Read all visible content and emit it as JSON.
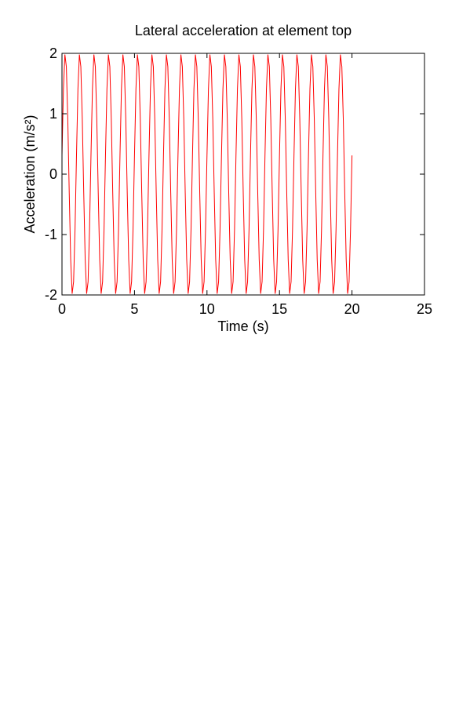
{
  "chart_data": {
    "type": "line",
    "title": "Lateral acceleration at element top",
    "xlabel": "Time (s)",
    "ylabel": "Acceleration (m/s²)",
    "xlim": [
      0,
      25
    ],
    "xticks": [
      0,
      5,
      10,
      15,
      20,
      25
    ],
    "ylim": [
      -2,
      2
    ],
    "yticks": [
      -2,
      -1,
      0,
      1,
      2
    ],
    "grid": false,
    "x": [
      0,
      0.1,
      0.2,
      0.3,
      0.4,
      0.5,
      0.6,
      0.7,
      0.8,
      0.9,
      1,
      1.1,
      1.2,
      1.3,
      1.4,
      1.5,
      1.6,
      1.7,
      1.8,
      1.9,
      2,
      2.1,
      2.2,
      2.3,
      2.4,
      2.5,
      2.6,
      2.7,
      2.8,
      2.9,
      3,
      3.1,
      3.2,
      3.3,
      3.4,
      3.5,
      3.6,
      3.7,
      3.8,
      3.9,
      4,
      4.1,
      4.2,
      4.3,
      4.4,
      4.5,
      4.6,
      4.7,
      4.8,
      4.9,
      5,
      5.1,
      5.2,
      5.3,
      5.4,
      5.5,
      5.6,
      5.7,
      5.8,
      5.9,
      6,
      6.1,
      6.2,
      6.3,
      6.4,
      6.5,
      6.6,
      6.7,
      6.8,
      6.9,
      7,
      7.1,
      7.2,
      7.3,
      7.4,
      7.5,
      7.6,
      7.7,
      7.8,
      7.9,
      8,
      8.1,
      8.2,
      8.3,
      8.4,
      8.5,
      8.6,
      8.7,
      8.8,
      8.9,
      9,
      9.1,
      9.2,
      9.3,
      9.4,
      9.5,
      9.6,
      9.7,
      9.8,
      9.9,
      10,
      10.1,
      10.2,
      10.3,
      10.4,
      10.5,
      10.6,
      10.7,
      10.8,
      10.9,
      11,
      11.1,
      11.2,
      11.3,
      11.4,
      11.5,
      11.6,
      11.7,
      11.8,
      11.9,
      12,
      12.1,
      12.2,
      12.3,
      12.4,
      12.5,
      12.6,
      12.7,
      12.8,
      12.9,
      13,
      13.1,
      13.2,
      13.3,
      13.4,
      13.5,
      13.6,
      13.7,
      13.8,
      13.9,
      14,
      14.1,
      14.2,
      14.3,
      14.4,
      14.5,
      14.6,
      14.7,
      14.8,
      14.9,
      15,
      15.1,
      15.2,
      15.3,
      15.4,
      15.5,
      15.6,
      15.7,
      15.8,
      15.9,
      16,
      16.1,
      16.2,
      16.3,
      16.4,
      16.5,
      16.6,
      16.7,
      16.8,
      16.9,
      17,
      17.1,
      17.2,
      17.3,
      17.4,
      17.5,
      17.6,
      17.7,
      17.8,
      17.9,
      18,
      18.1,
      18.2,
      18.3,
      18.4,
      18.5,
      18.6,
      18.7,
      18.8,
      18.9,
      19,
      19.1,
      19.2,
      19.3,
      19.4,
      19.5,
      19.6,
      19.7,
      19.8,
      19.9,
      20
    ],
    "series": [
      {
        "color": "#ff0000",
        "values": [
          0.31,
          1.41,
          1.98,
          1.78,
          0.91,
          -0.31,
          -1.41,
          -1.98,
          -1.78,
          -0.91,
          0.31,
          1.41,
          1.98,
          1.78,
          0.91,
          -0.31,
          -1.41,
          -1.98,
          -1.78,
          -0.91,
          0.31,
          1.41,
          1.98,
          1.78,
          0.91,
          -0.31,
          -1.41,
          -1.98,
          -1.78,
          -0.91,
          0.31,
          1.41,
          1.98,
          1.78,
          0.91,
          -0.31,
          -1.41,
          -1.98,
          -1.78,
          -0.91,
          0.31,
          1.41,
          1.98,
          1.78,
          0.91,
          -0.31,
          -1.41,
          -1.98,
          -1.78,
          -0.91,
          0.31,
          1.41,
          1.98,
          1.78,
          0.91,
          -0.31,
          -1.41,
          -1.98,
          -1.78,
          -0.91,
          0.31,
          1.41,
          1.98,
          1.78,
          0.91,
          -0.31,
          -1.41,
          -1.98,
          -1.78,
          -0.91,
          0.31,
          1.41,
          1.98,
          1.78,
          0.91,
          -0.31,
          -1.41,
          -1.98,
          -1.78,
          -0.91,
          0.31,
          1.41,
          1.98,
          1.78,
          0.91,
          -0.31,
          -1.41,
          -1.98,
          -1.78,
          -0.91,
          0.31,
          1.41,
          1.98,
          1.78,
          0.91,
          -0.31,
          -1.41,
          -1.98,
          -1.78,
          -0.91,
          0.31,
          1.41,
          1.98,
          1.78,
          0.91,
          -0.31,
          -1.41,
          -1.98,
          -1.78,
          -0.91,
          0.31,
          1.41,
          1.98,
          1.78,
          0.91,
          -0.31,
          -1.41,
          -1.98,
          -1.78,
          -0.91,
          0.31,
          1.41,
          1.98,
          1.78,
          0.91,
          -0.31,
          -1.41,
          -1.98,
          -1.78,
          -0.91,
          0.31,
          1.41,
          1.98,
          1.78,
          0.91,
          -0.31,
          -1.41,
          -1.98,
          -1.78,
          -0.91,
          0.31,
          1.41,
          1.98,
          1.78,
          0.91,
          -0.31,
          -1.41,
          -1.98,
          -1.78,
          -0.91,
          0.31,
          1.41,
          1.98,
          1.78,
          0.91,
          -0.31,
          -1.41,
          -1.98,
          -1.78,
          -0.91,
          0.31,
          1.41,
          1.98,
          1.78,
          0.91,
          -0.31,
          -1.41,
          -1.98,
          -1.78,
          -0.91,
          0.31,
          1.41,
          1.98,
          1.78,
          0.91,
          -0.31,
          -1.41,
          -1.98,
          -1.78,
          -0.91,
          0.31,
          1.41,
          1.98,
          1.78,
          0.91,
          -0.31,
          -1.41,
          -1.98,
          -1.78,
          -0.91,
          0.31,
          1.41,
          1.98,
          1.78,
          0.91,
          -0.31,
          -1.41,
          -1.98,
          -1.78,
          -0.91,
          0.31
        ]
      }
    ]
  }
}
